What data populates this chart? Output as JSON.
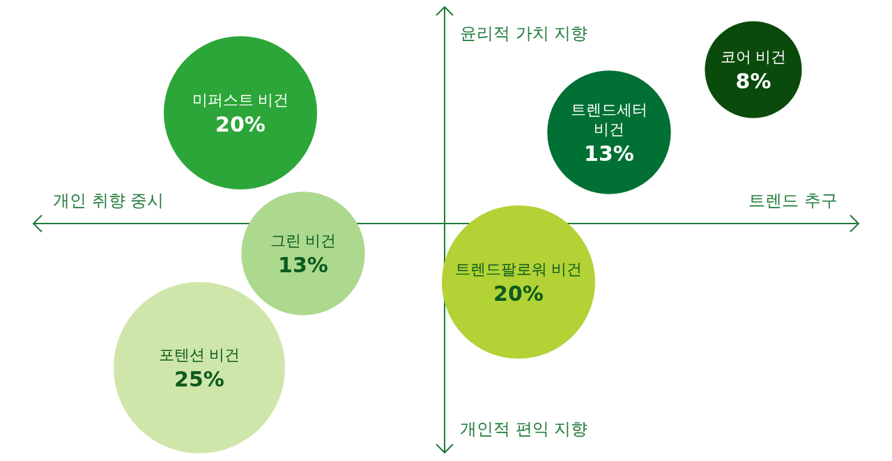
{
  "chart_data": {
    "type": "other",
    "annotations": [
      "윤리적 가치 지향",
      "트렌드 추구",
      "개인적 편익 지향",
      "개인 취향 중시"
    ],
    "categories": [
      "미퍼스트 비건",
      "그린 비건",
      "포텐션 비건",
      "트렌드팔로워 비건",
      "트렌드세터 비건",
      "코어 비건"
    ],
    "values": [
      20,
      13,
      25,
      20,
      13,
      8
    ],
    "value_labels": [
      "20%",
      "13%",
      "25%",
      "20%",
      "13%",
      "8%"
    ],
    "colors": [
      "#2ca638",
      "#acd98d",
      "#cfe6aa",
      "#b2d235",
      "#007034",
      "#0a4a0a"
    ]
  }
}
